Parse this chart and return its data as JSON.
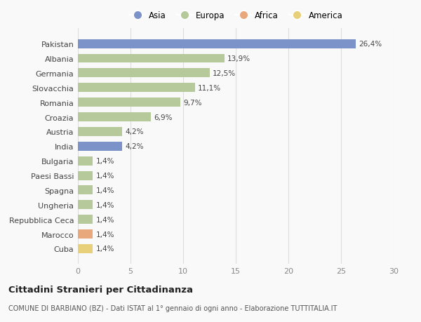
{
  "countries": [
    "Pakistan",
    "Albania",
    "Germania",
    "Slovacchia",
    "Romania",
    "Croazia",
    "Austria",
    "India",
    "Bulgaria",
    "Paesi Bassi",
    "Spagna",
    "Ungheria",
    "Repubblica Ceca",
    "Marocco",
    "Cuba"
  ],
  "values": [
    26.4,
    13.9,
    12.5,
    11.1,
    9.7,
    6.9,
    4.2,
    4.2,
    1.4,
    1.4,
    1.4,
    1.4,
    1.4,
    1.4,
    1.4
  ],
  "labels": [
    "26,4%",
    "13,9%",
    "12,5%",
    "11,1%",
    "9,7%",
    "6,9%",
    "4,2%",
    "4,2%",
    "1,4%",
    "1,4%",
    "1,4%",
    "1,4%",
    "1,4%",
    "1,4%",
    "1,4%"
  ],
  "continents": [
    "Asia",
    "Europa",
    "Europa",
    "Europa",
    "Europa",
    "Europa",
    "Europa",
    "Asia",
    "Europa",
    "Europa",
    "Europa",
    "Europa",
    "Europa",
    "Africa",
    "America"
  ],
  "colors": {
    "Asia": "#7b93c8",
    "Europa": "#b5c99a",
    "Africa": "#e8a87c",
    "America": "#e8d07a"
  },
  "legend_order": [
    "Asia",
    "Europa",
    "Africa",
    "America"
  ],
  "title": "Cittadini Stranieri per Cittadinanza",
  "subtitle": "COMUNE DI BARBIANO (BZ) - Dati ISTAT al 1° gennaio di ogni anno - Elaborazione TUTTITALIA.IT",
  "xlim": [
    0,
    30
  ],
  "xticks": [
    0,
    5,
    10,
    15,
    20,
    25,
    30
  ],
  "background_color": "#f9f9f9",
  "grid_color": "#dddddd"
}
